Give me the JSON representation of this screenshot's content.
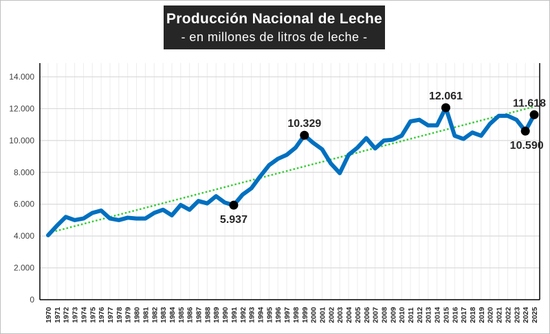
{
  "chart_data": {
    "type": "line",
    "title": "Producción Nacional de Leche",
    "subtitle": "- en millones de litros de leche -",
    "x": [
      1970,
      1971,
      1972,
      1973,
      1974,
      1975,
      1976,
      1977,
      1978,
      1979,
      1980,
      1981,
      1982,
      1983,
      1984,
      1985,
      1986,
      1987,
      1988,
      1989,
      1990,
      1991,
      1992,
      1993,
      1994,
      1995,
      1996,
      1997,
      1998,
      1999,
      2000,
      2001,
      2002,
      2003,
      2004,
      2005,
      2006,
      2007,
      2008,
      2009,
      2010,
      2011,
      2012,
      2013,
      2014,
      2015,
      2016,
      2017,
      2018,
      2019,
      2020,
      2021,
      2022,
      2023,
      2024,
      2025
    ],
    "series": [
      {
        "values": [
          4050,
          4650,
          5200,
          5000,
          5100,
          5450,
          5600,
          5100,
          5000,
          5150,
          5100,
          5100,
          5450,
          5650,
          5300,
          5950,
          5650,
          6200,
          6050,
          6500,
          6100,
          5937,
          6600,
          7000,
          7750,
          8450,
          8850,
          9100,
          9550,
          10329,
          9850,
          9450,
          8550,
          7950,
          9100,
          9550,
          10150,
          9500,
          10000,
          10050,
          10300,
          11200,
          11300,
          10950,
          10950,
          12061,
          10300,
          10100,
          10500,
          10300,
          11050,
          11550,
          11550,
          11300,
          10590,
          11618
        ],
        "color": "#0070c0"
      }
    ],
    "trendline": {
      "type": "linear",
      "color": "#33cc33",
      "style": "dotted"
    },
    "annotations": [
      {
        "x": 1991,
        "value": 5937,
        "label": "5.937",
        "position": "below"
      },
      {
        "x": 1999,
        "value": 10329,
        "label": "10.329",
        "position": "above"
      },
      {
        "x": 2015,
        "value": 12061,
        "label": "12.061",
        "position": "above"
      },
      {
        "x": 2024,
        "value": 10590,
        "label": "10.590",
        "position": "below"
      },
      {
        "x": 2025,
        "value": 11618,
        "label": "11.618",
        "position": "above"
      }
    ],
    "ylim": [
      0,
      14000
    ],
    "yticks": [
      0,
      2000,
      4000,
      6000,
      8000,
      10000,
      12000,
      14000
    ],
    "ytick_labels": [
      "0",
      "2.000",
      "4.000",
      "6.000",
      "8.000",
      "10.000",
      "12.000",
      "14.000"
    ],
    "grid": true,
    "xlabel": "",
    "ylabel": ""
  }
}
